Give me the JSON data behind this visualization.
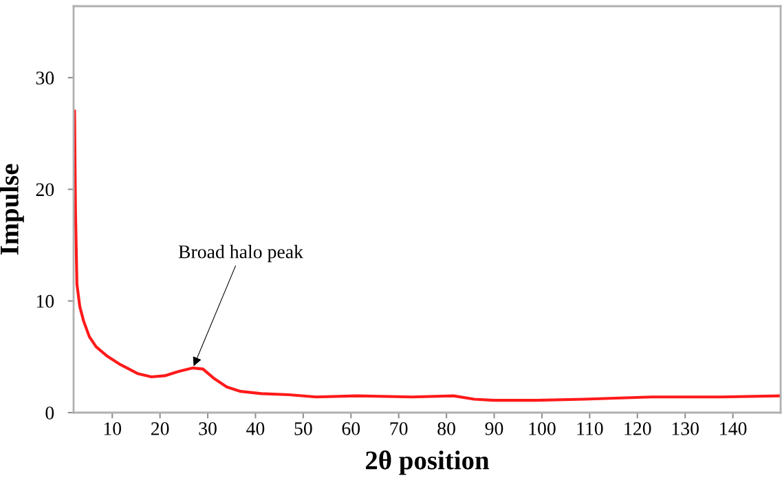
{
  "chart_data": {
    "type": "line",
    "xlabel": "2θ position",
    "ylabel": "Impulse",
    "x": [
      2.1,
      2.3,
      2.6,
      3.2,
      4.0,
      5.2,
      6.6,
      8.8,
      11.7,
      15.3,
      18.2,
      21.0,
      24.0,
      26.9,
      29.0,
      31.2,
      34.0,
      36.9,
      41.2,
      47.0,
      52.7,
      61.3,
      72.8,
      81.5,
      85.8,
      90.0,
      98.7,
      108.8,
      123.0,
      137.5,
      149.7
    ],
    "series": [
      {
        "color": "#ff1a1a",
        "values": [
          27.0,
          18.0,
          11.5,
          9.5,
          8.2,
          6.8,
          5.9,
          5.1,
          4.3,
          3.5,
          3.2,
          3.3,
          3.7,
          4.0,
          3.9,
          3.1,
          2.3,
          1.9,
          1.7,
          1.6,
          1.4,
          1.5,
          1.4,
          1.5,
          1.2,
          1.1,
          1.1,
          1.2,
          1.4,
          1.4,
          1.5
        ]
      }
    ],
    "xlim": [
      1.9,
      150
    ],
    "ylim": [
      0,
      36.4
    ],
    "xticks": [
      10,
      20,
      30,
      40,
      50,
      60,
      70,
      80,
      90,
      100,
      110,
      120,
      130,
      140
    ],
    "yticks": [
      0,
      10,
      20,
      30
    ],
    "grid": false,
    "legend": false,
    "marker": "none",
    "line_style": "solid",
    "annotations": [
      {
        "text": "Broad halo peak",
        "x": 26.9,
        "y": 4.0
      }
    ]
  }
}
